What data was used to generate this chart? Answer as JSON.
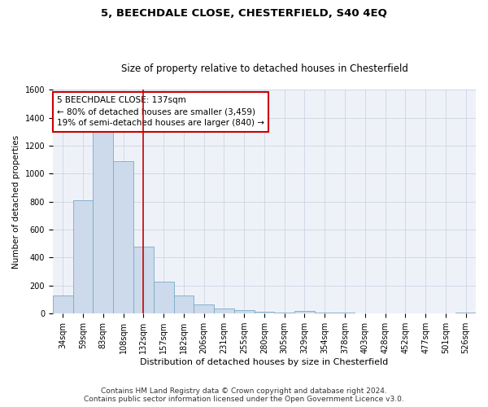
{
  "title1": "5, BEECHDALE CLOSE, CHESTERFIELD, S40 4EQ",
  "title2": "Size of property relative to detached houses in Chesterfield",
  "xlabel": "Distribution of detached houses by size in Chesterfield",
  "ylabel": "Number of detached properties",
  "categories": [
    "34sqm",
    "59sqm",
    "83sqm",
    "108sqm",
    "132sqm",
    "157sqm",
    "182sqm",
    "206sqm",
    "231sqm",
    "255sqm",
    "280sqm",
    "305sqm",
    "329sqm",
    "354sqm",
    "378sqm",
    "403sqm",
    "428sqm",
    "452sqm",
    "477sqm",
    "501sqm",
    "526sqm"
  ],
  "values": [
    130,
    810,
    1300,
    1090,
    480,
    228,
    130,
    65,
    38,
    22,
    12,
    5,
    18,
    5,
    5,
    0,
    0,
    0,
    0,
    0,
    5
  ],
  "bar_color": "#ccdaeb",
  "bar_edge_color": "#7aaac8",
  "vline_color": "#cc0000",
  "annotation_text": "5 BEECHDALE CLOSE: 137sqm\n← 80% of detached houses are smaller (3,459)\n19% of semi-detached houses are larger (840) →",
  "annotation_box_color": "#ffffff",
  "annotation_box_edge": "#cc0000",
  "ylim": [
    0,
    1600
  ],
  "yticks": [
    0,
    200,
    400,
    600,
    800,
    1000,
    1200,
    1400,
    1600
  ],
  "grid_color": "#c5cfe0",
  "background_color": "#eef2f8",
  "footer1": "Contains HM Land Registry data © Crown copyright and database right 2024.",
  "footer2": "Contains public sector information licensed under the Open Government Licence v3.0.",
  "title1_fontsize": 9.5,
  "title2_fontsize": 8.5,
  "xlabel_fontsize": 8,
  "ylabel_fontsize": 7.5,
  "tick_fontsize": 7,
  "annotation_fontsize": 7.5,
  "footer_fontsize": 6.5
}
